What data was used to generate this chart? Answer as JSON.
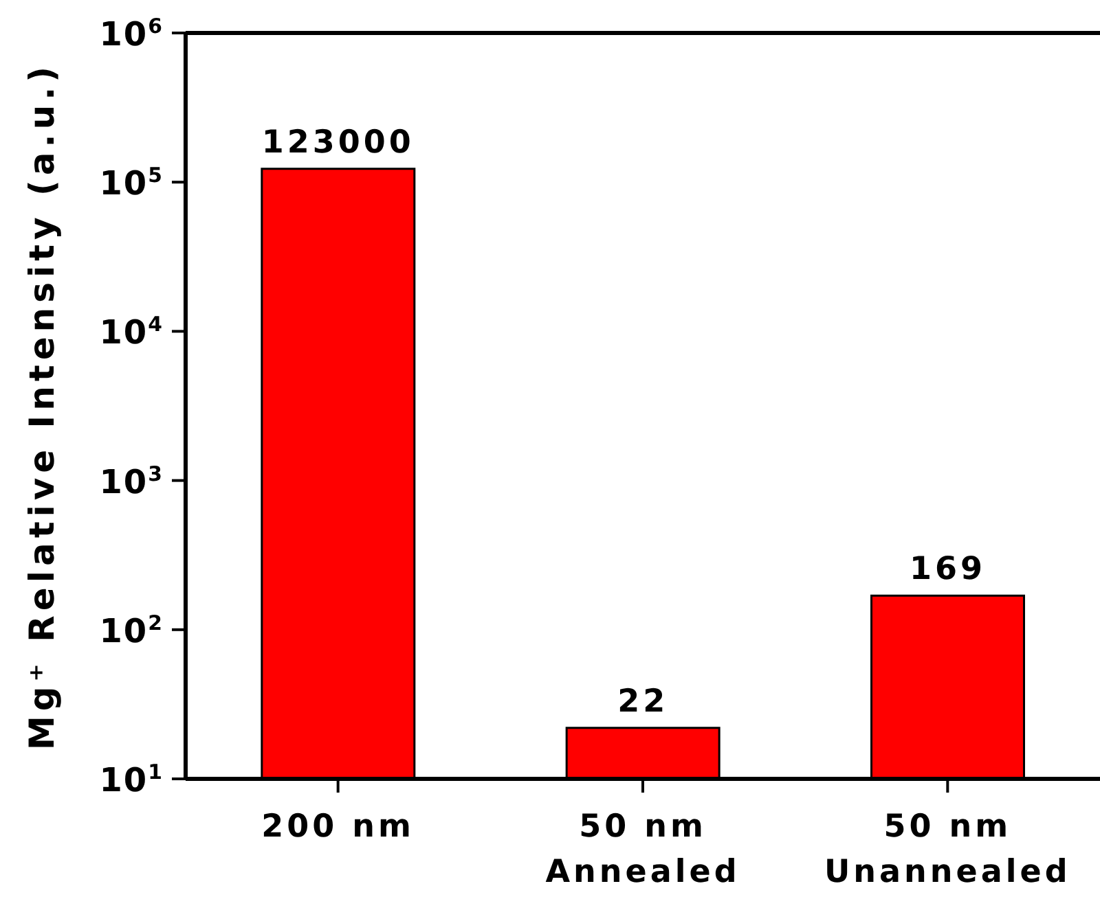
{
  "chart_data": {
    "type": "bar",
    "ylabel": "Mg⁺ Relative Intensity (a.u.)",
    "categories": [
      "200 nm",
      "50 nm\nAnnealed",
      "50 nm\nUnannealed"
    ],
    "values": [
      123000,
      22,
      169
    ],
    "color": "#ff0000",
    "data_labels": true,
    "log": true,
    "ylim": [
      10,
      1000000
    ],
    "yticks": [
      {
        "value": 10,
        "label": "10$^{1}$"
      },
      {
        "value": 100,
        "label": "10$^{2}$"
      },
      {
        "value": 1000,
        "label": "10$^{3}$"
      },
      {
        "value": 10000,
        "label": "10$^{4}$"
      },
      {
        "value": 100000,
        "label": "10$^{5}$"
      },
      {
        "value": 1000000,
        "label": "10$^{6}$"
      }
    ]
  }
}
